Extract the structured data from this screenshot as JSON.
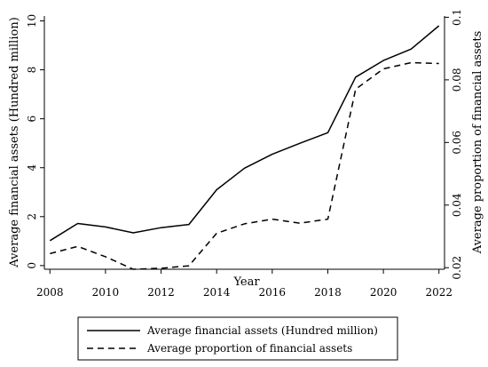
{
  "chart_data": {
    "type": "line",
    "xlabel": "Year",
    "ylabel_left": "Average financial assets (Hundred million)",
    "ylabel_right": "Average proportion of financial assets",
    "x": [
      2008,
      2009,
      2010,
      2011,
      2012,
      2013,
      2014,
      2015,
      2016,
      2017,
      2018,
      2019,
      2020,
      2021,
      2022
    ],
    "x_ticks": [
      2008,
      2010,
      2012,
      2014,
      2016,
      2018,
      2020,
      2022
    ],
    "y_left_ticks": [
      0,
      2,
      4,
      6,
      8,
      10
    ],
    "y_right_ticks": [
      0.02,
      0.04,
      0.06,
      0.08,
      0.1
    ],
    "y_left_lim": [
      -0.15,
      10.2
    ],
    "y_right_lim": [
      0.0195,
      0.1004
    ],
    "series": [
      {
        "name": "Average financial assets (Hundred million)",
        "axis": "left",
        "style": "solid",
        "values": [
          1.02,
          1.72,
          1.58,
          1.34,
          1.55,
          1.68,
          3.1,
          3.98,
          4.55,
          5.0,
          5.43,
          7.7,
          8.38,
          8.85,
          9.8
        ]
      },
      {
        "name": "Average proportion of financial assets",
        "axis": "right",
        "style": "dashed",
        "values": [
          0.0245,
          0.0268,
          0.0235,
          0.0195,
          0.0198,
          0.0206,
          0.031,
          0.034,
          0.0355,
          0.0342,
          0.0355,
          0.077,
          0.0835,
          0.0855,
          0.0852
        ]
      }
    ],
    "legend": {
      "position": "bottom",
      "entries": [
        {
          "label": "Average financial assets (Hundred million)",
          "style": "solid"
        },
        {
          "label": "Average proportion of financial assets",
          "style": "dashed"
        }
      ]
    },
    "grid": false,
    "colors": {
      "line": "#000000",
      "background": "#ffffff"
    }
  }
}
